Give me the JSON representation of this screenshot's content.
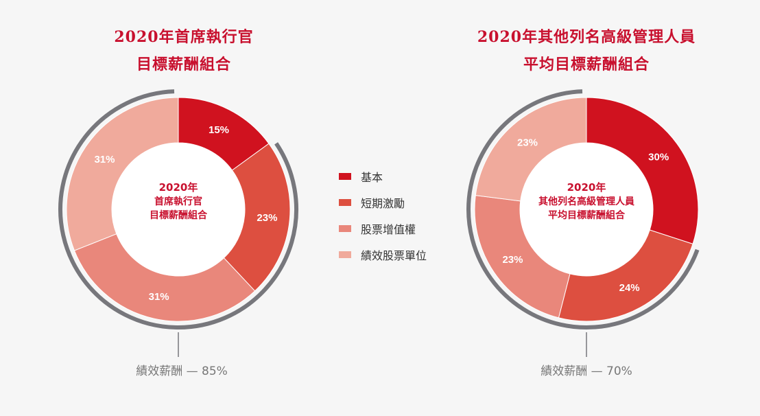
{
  "colors": {
    "title": "#c8102e",
    "bracket": "#77777c",
    "categories": [
      "#d0121f",
      "#dd4f40",
      "#e9877b",
      "#f0aa9c"
    ]
  },
  "legend": [
    {
      "label": "基本",
      "color": "#d0121f"
    },
    {
      "label": "短期激勵",
      "color": "#dd4f40"
    },
    {
      "label": "股票增值權",
      "color": "#e9877b"
    },
    {
      "label": "績效股票單位",
      "color": "#f0aa9c"
    }
  ],
  "charts": [
    {
      "title_lines": [
        "2020年首席執行官",
        "目標薪酬組合"
      ],
      "center_lines": [
        "2020年",
        "首席執行官",
        "目標薪酬組合"
      ],
      "footer": "績效薪酬 — 85%"
    },
    {
      "title_lines": [
        "2020年其他列名高級管理人員",
        "平均目標薪酬組合"
      ],
      "center_lines": [
        "2020年",
        "其他列名高級管理人員",
        "平均目標薪酬組合"
      ],
      "footer": "績效薪酬 — 70%"
    }
  ],
  "chart_data": [
    {
      "type": "pie",
      "title": "2020年首席執行官目標薪酬組合",
      "categories": [
        "基本",
        "短期激勵",
        "股票增值權",
        "績效股票單位"
      ],
      "values": [
        15,
        23,
        31,
        31
      ],
      "labels": [
        "15%",
        "23%",
        "31%",
        "31%"
      ],
      "annotation": "績效薪酬 — 85%"
    },
    {
      "type": "pie",
      "title": "2020年其他列名高級管理人員平均目標薪酬組合",
      "categories": [
        "基本",
        "短期激勵",
        "股票增值權",
        "績效股票單位"
      ],
      "values": [
        30,
        24,
        23,
        23
      ],
      "labels": [
        "30%",
        "24%",
        "23%",
        "23%"
      ],
      "annotation": "績效薪酬 — 70%"
    }
  ]
}
